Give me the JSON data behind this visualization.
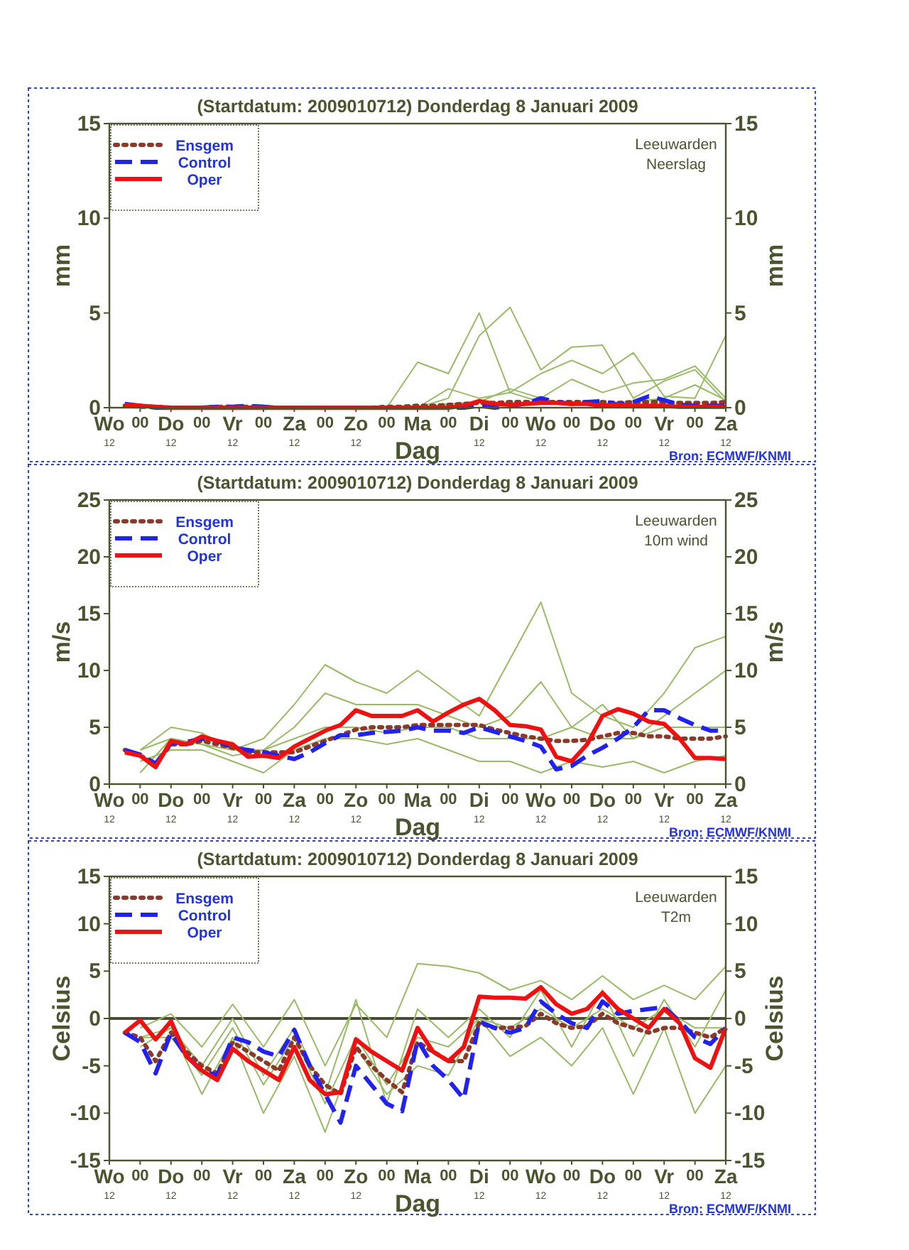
{
  "chart_data": [
    {
      "type": "line",
      "title": "(Startdatum: 2009010712)   Donderdag  8 Januari   2009",
      "xlabel": "Dag",
      "ylabel": "mm",
      "y2label": "mm",
      "annotations": [
        "Leeuwarden",
        "Neerslag",
        "Bron: ECMWF/KNMI"
      ],
      "xlim": [
        "2009-01-07T12:00",
        "2009-01-17T12:00"
      ],
      "xticks": [
        {
          "value": "2009-01-07T12:00",
          "label": "Wo$_{12}$"
        },
        {
          "value": "2009-01-08T00:00",
          "label": "00"
        },
        {
          "value": "2009-01-08T12:00",
          "label": "Do$_{12}$"
        },
        {
          "value": "2009-01-09T00:00",
          "label": "00"
        },
        {
          "value": "2009-01-09T12:00",
          "label": "Vr$_{12}$"
        },
        {
          "value": "2009-01-10T00:00",
          "label": "00"
        },
        {
          "value": "2009-01-10T12:00",
          "label": "Za$_{12}$"
        },
        {
          "value": "2009-01-11T00:00",
          "label": "00"
        },
        {
          "value": "2009-01-11T12:00",
          "label": "Zo$_{12}$"
        },
        {
          "value": "2009-01-12T00:00",
          "label": "00"
        },
        {
          "value": "2009-01-12T12:00",
          "label": "Ma"
        },
        {
          "value": "2009-01-13T00:00",
          "label": "00"
        },
        {
          "value": "2009-01-13T12:00",
          "label": "Di$_{12}$"
        },
        {
          "value": "2009-01-14T00:00",
          "label": "00"
        },
        {
          "value": "2009-01-14T12:00",
          "label": "Wo$_{12}$"
        },
        {
          "value": "2009-01-15T00:00",
          "label": "00"
        },
        {
          "value": "2009-01-15T12:00",
          "label": "Do$_{12}$"
        },
        {
          "value": "2009-01-16T00:00",
          "label": "00"
        },
        {
          "value": "2009-01-16T12:00",
          "label": "Vr$_{12}$"
        },
        {
          "value": "2009-01-17T00:00",
          "label": "00"
        },
        {
          "value": "2009-01-17T12:00",
          "label": "Za$_{12}$"
        }
      ],
      "ylim": [
        0,
        15
      ],
      "yticks": [
        0,
        5,
        10,
        15
      ],
      "y2lim": [
        0,
        15
      ],
      "y2ticks": [
        0,
        5,
        10,
        15
      ],
      "x": [
        "2009-01-07T18:00",
        "2009-01-08T00:00",
        "2009-01-08T06:00",
        "2009-01-08T12:00",
        "2009-01-08T18:00",
        "2009-01-09T00:00",
        "2009-01-09T06:00",
        "2009-01-09T12:00",
        "2009-01-09T18:00",
        "2009-01-10T00:00",
        "2009-01-10T06:00",
        "2009-01-10T12:00",
        "2009-01-10T18:00",
        "2009-01-11T00:00",
        "2009-01-11T06:00",
        "2009-01-11T12:00",
        "2009-01-11T18:00",
        "2009-01-12T00:00",
        "2009-01-12T06:00",
        "2009-01-12T12:00",
        "2009-01-12T18:00",
        "2009-01-13T00:00",
        "2009-01-13T06:00",
        "2009-01-13T12:00",
        "2009-01-13T18:00",
        "2009-01-14T00:00",
        "2009-01-14T06:00",
        "2009-01-14T12:00",
        "2009-01-14T18:00",
        "2009-01-15T00:00",
        "2009-01-15T06:00",
        "2009-01-15T12:00",
        "2009-01-15T18:00",
        "2009-01-16T00:00",
        "2009-01-16T06:00",
        "2009-01-16T12:00",
        "2009-01-16T18:00",
        "2009-01-17T00:00",
        "2009-01-17T06:00",
        "2009-01-17T12:00"
      ],
      "grid": false,
      "legend": "top left",
      "series": [
        {
          "color": "#99bb66",
          "line_style": "solid",
          "x": [
            "2009-01-08T00:00",
            "2009-01-08T12:00",
            "2009-01-09T00:00",
            "2009-01-09T12:00",
            "2009-01-10T00:00",
            "2009-01-10T12:00",
            "2009-01-11T00:00",
            "2009-01-11T12:00",
            "2009-01-12T00:00",
            "2009-01-12T12:00",
            "2009-01-13T00:00",
            "2009-01-13T12:00",
            "2009-01-14T00:00",
            "2009-01-14T12:00",
            "2009-01-15T00:00",
            "2009-01-15T12:00",
            "2009-01-16T00:00",
            "2009-01-16T12:00",
            "2009-01-17T00:00",
            "2009-01-17T12:00"
          ],
          "values": [
            0,
            0,
            0,
            0,
            0,
            0,
            0,
            0,
            0,
            2.4,
            1.8,
            5,
            0.8,
            0.3,
            0.2,
            0.2,
            0.3,
            0.5,
            1.2,
            0.4
          ]
        },
        {
          "color": "#99bb66",
          "line_style": "solid",
          "x": [
            "2009-01-08T00:00",
            "2009-01-08T12:00",
            "2009-01-09T00:00",
            "2009-01-09T12:00",
            "2009-01-10T00:00",
            "2009-01-10T12:00",
            "2009-01-11T00:00",
            "2009-01-11T12:00",
            "2009-01-12T00:00",
            "2009-01-12T12:00",
            "2009-01-13T00:00",
            "2009-01-13T12:00",
            "2009-01-14T00:00",
            "2009-01-14T12:00",
            "2009-01-15T00:00",
            "2009-01-15T12:00",
            "2009-01-16T00:00",
            "2009-01-16T12:00",
            "2009-01-17T00:00",
            "2009-01-17T12:00"
          ],
          "values": [
            0,
            0,
            0,
            0,
            0,
            0,
            0,
            0,
            0,
            0,
            0.5,
            3.8,
            5.3,
            2,
            3.2,
            3.3,
            0.5,
            1.4,
            2,
            0.3
          ]
        },
        {
          "color": "#99bb66",
          "line_style": "solid",
          "x": [
            "2009-01-08T00:00",
            "2009-01-08T12:00",
            "2009-01-09T00:00",
            "2009-01-09T12:00",
            "2009-01-10T00:00",
            "2009-01-10T12:00",
            "2009-01-11T00:00",
            "2009-01-11T12:00",
            "2009-01-12T00:00",
            "2009-01-12T12:00",
            "2009-01-13T00:00",
            "2009-01-13T12:00",
            "2009-01-14T00:00",
            "2009-01-14T12:00",
            "2009-01-15T00:00",
            "2009-01-15T12:00",
            "2009-01-16T00:00",
            "2009-01-16T12:00",
            "2009-01-17T00:00",
            "2009-01-17T12:00"
          ],
          "values": [
            0,
            0,
            0,
            0,
            0,
            0,
            0,
            0,
            0,
            0,
            1,
            0.5,
            0.8,
            1.8,
            2.5,
            1.8,
            2.9,
            0.6,
            0.5,
            3.8
          ]
        },
        {
          "color": "#99bb66",
          "line_style": "solid",
          "x": [
            "2009-01-08T00:00",
            "2009-01-08T12:00",
            "2009-01-09T00:00",
            "2009-01-09T12:00",
            "2009-01-10T00:00",
            "2009-01-10T12:00",
            "2009-01-11T00:00",
            "2009-01-11T12:00",
            "2009-01-12T00:00",
            "2009-01-12T12:00",
            "2009-01-13T00:00",
            "2009-01-13T12:00",
            "2009-01-14T00:00",
            "2009-01-14T12:00",
            "2009-01-15T00:00",
            "2009-01-15T12:00",
            "2009-01-16T00:00",
            "2009-01-16T12:00",
            "2009-01-17T00:00",
            "2009-01-17T12:00"
          ],
          "values": [
            0,
            0,
            0,
            0,
            0,
            0,
            0,
            0,
            0,
            0,
            0.2,
            0.3,
            1,
            0.5,
            1.5,
            0.8,
            1.3,
            1.5,
            2.2,
            0.5
          ]
        },
        {
          "name": "Ensgem",
          "color": "#8b3a2a",
          "line_style": "dotted",
          "values": [
            0.1,
            0.05,
            0.05,
            0,
            0,
            0,
            0.05,
            0.05,
            0.05,
            0.05,
            0,
            0,
            0,
            0,
            0,
            0,
            0,
            0.05,
            0.05,
            0.1,
            0.1,
            0.15,
            0.2,
            0.25,
            0.25,
            0.3,
            0.3,
            0.3,
            0.3,
            0.3,
            0.3,
            0.3,
            0.25,
            0.3,
            0.3,
            0.3,
            0.25,
            0.25,
            0.25,
            0.3
          ]
        },
        {
          "name": "Control",
          "color": "#2222ee",
          "line_style": "dashed",
          "values": [
            0.2,
            0.1,
            0,
            0,
            0,
            0,
            0.05,
            0.05,
            0.1,
            0.05,
            0,
            0,
            0,
            0,
            0,
            0,
            0,
            0,
            0,
            0,
            0,
            0,
            0,
            0.1,
            0,
            0.1,
            0.2,
            0.5,
            0.3,
            0.2,
            0.3,
            0.35,
            0.15,
            0.3,
            0.6,
            0.4,
            0.15,
            0.1,
            0.1,
            0.1
          ]
        },
        {
          "name": "Oper",
          "color": "#ee1111",
          "line_style": "solid",
          "values": [
            0.15,
            0.1,
            0.05,
            0,
            0,
            0,
            0,
            0,
            0,
            0,
            0,
            0,
            0,
            0,
            0,
            0,
            0,
            0,
            0,
            0,
            0,
            0,
            0.1,
            0.35,
            0.2,
            0.15,
            0.2,
            0.25,
            0.25,
            0.2,
            0.2,
            0.1,
            0.15,
            0.1,
            0.1,
            0.1,
            0.05,
            0.05,
            0.05,
            0.05
          ]
        }
      ]
    },
    {
      "type": "line",
      "title": "(Startdatum: 2009010712)   Donderdag  8 Januari   2009",
      "xlabel": "Dag",
      "ylabel": "m/s",
      "y2label": "m/s",
      "annotations": [
        "Leeuwarden",
        "10m wind",
        "Bron: ECMWF/KNMI"
      ],
      "xlim": [
        "2009-01-07T12:00",
        "2009-01-17T12:00"
      ],
      "xticks": [
        {
          "value": "2009-01-07T12:00",
          "label": "Wo$_{12}$"
        },
        {
          "value": "2009-01-08T00:00",
          "label": "00"
        },
        {
          "value": "2009-01-08T12:00",
          "label": "Do$_{12}$"
        },
        {
          "value": "2009-01-09T00:00",
          "label": "00"
        },
        {
          "value": "2009-01-09T12:00",
          "label": "Vr$_{12}$"
        },
        {
          "value": "2009-01-10T00:00",
          "label": "00"
        },
        {
          "value": "2009-01-10T12:00",
          "label": "Za$_{12}$"
        },
        {
          "value": "2009-01-11T00:00",
          "label": "00"
        },
        {
          "value": "2009-01-11T12:00",
          "label": "Zo$_{12}$"
        },
        {
          "value": "2009-01-12T00:00",
          "label": "00"
        },
        {
          "value": "2009-01-12T12:00",
          "label": "Ma"
        },
        {
          "value": "2009-01-13T00:00",
          "label": "00"
        },
        {
          "value": "2009-01-13T12:00",
          "label": "Di$_{12}$"
        },
        {
          "value": "2009-01-14T00:00",
          "label": "00"
        },
        {
          "value": "2009-01-14T12:00",
          "label": "Wo$_{12}$"
        },
        {
          "value": "2009-01-15T00:00",
          "label": "00"
        },
        {
          "value": "2009-01-15T12:00",
          "label": "Do$_{12}$"
        },
        {
          "value": "2009-01-16T00:00",
          "label": "00"
        },
        {
          "value": "2009-01-16T12:00",
          "label": "Vr$_{12}$"
        },
        {
          "value": "2009-01-17T00:00",
          "label": "00"
        },
        {
          "value": "2009-01-17T12:00",
          "label": "Za$_{12}$"
        }
      ],
      "ylim": [
        0,
        25
      ],
      "yticks": [
        0,
        5,
        10,
        15,
        20,
        25
      ],
      "y2lim": [
        0,
        25
      ],
      "y2ticks": [
        0,
        5,
        10,
        15,
        20,
        25
      ],
      "x": [
        "2009-01-07T18:00",
        "2009-01-08T00:00",
        "2009-01-08T06:00",
        "2009-01-08T12:00",
        "2009-01-08T18:00",
        "2009-01-09T00:00",
        "2009-01-09T06:00",
        "2009-01-09T12:00",
        "2009-01-09T18:00",
        "2009-01-10T00:00",
        "2009-01-10T06:00",
        "2009-01-10T12:00",
        "2009-01-10T18:00",
        "2009-01-11T00:00",
        "2009-01-11T06:00",
        "2009-01-11T12:00",
        "2009-01-11T18:00",
        "2009-01-12T00:00",
        "2009-01-12T06:00",
        "2009-01-12T12:00",
        "2009-01-12T18:00",
        "2009-01-13T00:00",
        "2009-01-13T06:00",
        "2009-01-13T12:00",
        "2009-01-13T18:00",
        "2009-01-14T00:00",
        "2009-01-14T06:00",
        "2009-01-14T12:00",
        "2009-01-14T18:00",
        "2009-01-15T00:00",
        "2009-01-15T06:00",
        "2009-01-15T12:00",
        "2009-01-15T18:00",
        "2009-01-16T00:00",
        "2009-01-16T06:00",
        "2009-01-16T12:00",
        "2009-01-16T18:00",
        "2009-01-17T00:00",
        "2009-01-17T06:00",
        "2009-01-17T12:00"
      ],
      "grid": false,
      "legend": "top left",
      "series": [
        {
          "color": "#99bb66",
          "line_style": "solid",
          "x": [
            "2009-01-08T00:00",
            "2009-01-08T12:00",
            "2009-01-09T00:00",
            "2009-01-09T12:00",
            "2009-01-10T00:00",
            "2009-01-10T12:00",
            "2009-01-11T00:00",
            "2009-01-11T12:00",
            "2009-01-12T00:00",
            "2009-01-12T12:00",
            "2009-01-13T00:00",
            "2009-01-13T12:00",
            "2009-01-14T00:00",
            "2009-01-14T12:00",
            "2009-01-15T00:00",
            "2009-01-15T12:00",
            "2009-01-16T00:00",
            "2009-01-16T12:00",
            "2009-01-17T00:00",
            "2009-01-17T12:00"
          ],
          "values": [
            3,
            4,
            3.5,
            3,
            4,
            7,
            10.5,
            9,
            8,
            10,
            8,
            6,
            11,
            16,
            8,
            6,
            5,
            8,
            12,
            13
          ]
        },
        {
          "color": "#99bb66",
          "line_style": "solid",
          "x": [
            "2009-01-08T00:00",
            "2009-01-08T12:00",
            "2009-01-09T00:00",
            "2009-01-09T12:00",
            "2009-01-10T00:00",
            "2009-01-10T12:00",
            "2009-01-11T00:00",
            "2009-01-11T12:00",
            "2009-01-12T00:00",
            "2009-01-12T12:00",
            "2009-01-13T00:00",
            "2009-01-13T12:00",
            "2009-01-14T00:00",
            "2009-01-14T12:00",
            "2009-01-15T00:00",
            "2009-01-15T12:00",
            "2009-01-16T00:00",
            "2009-01-16T12:00",
            "2009-01-17T00:00",
            "2009-01-17T12:00"
          ],
          "values": [
            2,
            3,
            3,
            2,
            1,
            3,
            4,
            4,
            3.5,
            4,
            3,
            2,
            2,
            1,
            2,
            1.5,
            2,
            1,
            2,
            2.5
          ]
        },
        {
          "color": "#99bb66",
          "line_style": "solid",
          "x": [
            "2009-01-08T00:00",
            "2009-01-08T12:00",
            "2009-01-09T00:00",
            "2009-01-09T12:00",
            "2009-01-10T00:00",
            "2009-01-10T12:00",
            "2009-01-11T00:00",
            "2009-01-11T12:00",
            "2009-01-12T00:00",
            "2009-01-12T12:00",
            "2009-01-13T00:00",
            "2009-01-13T12:00",
            "2009-01-14T00:00",
            "2009-01-14T12:00",
            "2009-01-15T00:00",
            "2009-01-15T12:00",
            "2009-01-16T00:00",
            "2009-01-16T12:00",
            "2009-01-17T00:00",
            "2009-01-17T12:00"
          ],
          "values": [
            3,
            5,
            4.5,
            3,
            3,
            5,
            8,
            7,
            7,
            7,
            6,
            5,
            6,
            9,
            5,
            7,
            4,
            6,
            8,
            10
          ]
        },
        {
          "color": "#99bb66",
          "line_style": "solid",
          "x": [
            "2009-01-08T00:00",
            "2009-01-08T12:00",
            "2009-01-09T00:00",
            "2009-01-09T12:00",
            "2009-01-10T00:00",
            "2009-01-10T12:00",
            "2009-01-11T00:00",
            "2009-01-11T12:00",
            "2009-01-12T00:00",
            "2009-01-12T12:00",
            "2009-01-13T00:00",
            "2009-01-13T12:00",
            "2009-01-14T00:00",
            "2009-01-14T12:00",
            "2009-01-15T00:00",
            "2009-01-15T12:00",
            "2009-01-16T00:00",
            "2009-01-16T12:00",
            "2009-01-17T00:00",
            "2009-01-17T12:00"
          ],
          "values": [
            1,
            4,
            3.5,
            2.5,
            3,
            4,
            5,
            5,
            4.5,
            5,
            5,
            4,
            4,
            4,
            5,
            4,
            4,
            5,
            5,
            5
          ]
        },
        {
          "name": "Ensgem",
          "color": "#8b3a2a",
          "line_style": "dotted",
          "values": [
            3,
            2.5,
            1.8,
            3.5,
            3.5,
            3.8,
            3.5,
            3.2,
            2.8,
            2.8,
            2.8,
            2.8,
            3.3,
            3.8,
            4.3,
            4.8,
            5,
            5,
            5,
            5.2,
            5.2,
            5.2,
            5.2,
            5.2,
            4.8,
            4.5,
            4.2,
            4,
            3.8,
            3.8,
            3.9,
            4.2,
            4.5,
            4.5,
            4.2,
            4.2,
            4,
            4,
            4,
            4.2
          ]
        },
        {
          "name": "Control",
          "color": "#2222ee",
          "line_style": "dashed",
          "values": [
            3,
            2.6,
            1.8,
            3.6,
            3.7,
            4,
            3.8,
            3.2,
            3,
            2.8,
            2.5,
            2.2,
            2.8,
            3.6,
            4.3,
            4.3,
            4.5,
            4.6,
            4.7,
            5,
            4.7,
            4.7,
            4.5,
            5,
            4.6,
            4.2,
            3.8,
            3.3,
            1.3,
            1.6,
            2.5,
            3.2,
            4,
            5,
            6.5,
            6.5,
            5.8,
            5.2,
            4.7,
            4.7
          ]
        },
        {
          "name": "Oper",
          "color": "#ee1111",
          "line_style": "solid",
          "values": [
            2.8,
            2.5,
            1.5,
            3.8,
            3.5,
            4.2,
            3.8,
            3.5,
            2.4,
            2.5,
            2.3,
            3.3,
            4,
            4.7,
            5.2,
            6.5,
            6,
            6,
            6,
            6.5,
            5.5,
            6.3,
            7,
            7.5,
            6.5,
            5.2,
            5.1,
            4.8,
            2.4,
            2,
            3.5,
            6,
            6.6,
            6.2,
            5.5,
            5.3,
            4,
            2.3,
            2.3,
            2.2
          ]
        }
      ]
    },
    {
      "type": "line",
      "title": "(Startdatum: 2009010712)   Donderdag  8 Januari   2009",
      "xlabel": "Dag",
      "ylabel": "Celsius",
      "y2label": "Celsius",
      "annotations": [
        "Leeuwarden",
        "T2m",
        "Bron: ECMWF/KNMI"
      ],
      "xlim": [
        "2009-01-07T12:00",
        "2009-01-17T12:00"
      ],
      "xticks": [
        {
          "value": "2009-01-07T12:00",
          "label": "Wo$_{12}$"
        },
        {
          "value": "2009-01-08T00:00",
          "label": "00"
        },
        {
          "value": "2009-01-08T12:00",
          "label": "Do$_{12}$"
        },
        {
          "value": "2009-01-09T00:00",
          "label": "00"
        },
        {
          "value": "2009-01-09T12:00",
          "label": "Vr$_{12}$"
        },
        {
          "value": "2009-01-10T00:00",
          "label": "00"
        },
        {
          "value": "2009-01-10T12:00",
          "label": "Za$_{12}$"
        },
        {
          "value": "2009-01-11T00:00",
          "label": "00"
        },
        {
          "value": "2009-01-11T12:00",
          "label": "Zo$_{12}$"
        },
        {
          "value": "2009-01-12T00:00",
          "label": "00"
        },
        {
          "value": "2009-01-12T12:00",
          "label": "Ma"
        },
        {
          "value": "2009-01-13T00:00",
          "label": "00"
        },
        {
          "value": "2009-01-13T12:00",
          "label": "Di$_{12}$"
        },
        {
          "value": "2009-01-14T00:00",
          "label": "00"
        },
        {
          "value": "2009-01-14T12:00",
          "label": "Wo$_{12}$"
        },
        {
          "value": "2009-01-15T00:00",
          "label": "00"
        },
        {
          "value": "2009-01-15T12:00",
          "label": "Do$_{12}$"
        },
        {
          "value": "2009-01-16T00:00",
          "label": "00"
        },
        {
          "value": "2009-01-16T12:00",
          "label": "Vr$_{12}$"
        },
        {
          "value": "2009-01-17T00:00",
          "label": "00"
        },
        {
          "value": "2009-01-17T12:00",
          "label": "Za$_{12}$"
        }
      ],
      "ylim": [
        -15,
        15
      ],
      "yticks": [
        -15,
        -10,
        -5,
        0,
        5,
        10,
        15
      ],
      "y2lim": [
        -15,
        15
      ],
      "y2ticks": [
        -15,
        -10,
        -5,
        0,
        5,
        10,
        15
      ],
      "x": [
        "2009-01-07T18:00",
        "2009-01-08T00:00",
        "2009-01-08T06:00",
        "2009-01-08T12:00",
        "2009-01-08T18:00",
        "2009-01-09T00:00",
        "2009-01-09T06:00",
        "2009-01-09T12:00",
        "2009-01-09T18:00",
        "2009-01-10T00:00",
        "2009-01-10T06:00",
        "2009-01-10T12:00",
        "2009-01-10T18:00",
        "2009-01-11T00:00",
        "2009-01-11T06:00",
        "2009-01-11T12:00",
        "2009-01-11T18:00",
        "2009-01-12T00:00",
        "2009-01-12T06:00",
        "2009-01-12T12:00",
        "2009-01-12T18:00",
        "2009-01-13T00:00",
        "2009-01-13T06:00",
        "2009-01-13T12:00",
        "2009-01-13T18:00",
        "2009-01-14T00:00",
        "2009-01-14T06:00",
        "2009-01-14T12:00",
        "2009-01-14T18:00",
        "2009-01-15T00:00",
        "2009-01-15T06:00",
        "2009-01-15T12:00",
        "2009-01-15T18:00",
        "2009-01-16T00:00",
        "2009-01-16T06:00",
        "2009-01-16T12:00",
        "2009-01-16T18:00",
        "2009-01-17T00:00",
        "2009-01-17T06:00",
        "2009-01-17T12:00"
      ],
      "grid": false,
      "legend": "top left",
      "ref_lines": [
        {
          "axis": "y",
          "value": 0,
          "color": "#4a4a3a"
        }
      ],
      "series": [
        {
          "color": "#99bb66",
          "line_style": "solid",
          "x": [
            "2009-01-08T00:00",
            "2009-01-08T12:00",
            "2009-01-09T00:00",
            "2009-01-09T12:00",
            "2009-01-10T00:00",
            "2009-01-10T12:00",
            "2009-01-11T00:00",
            "2009-01-11T12:00",
            "2009-01-12T00:00",
            "2009-01-12T12:00",
            "2009-01-13T00:00",
            "2009-01-13T12:00",
            "2009-01-14T00:00",
            "2009-01-14T12:00",
            "2009-01-15T00:00",
            "2009-01-15T12:00",
            "2009-01-16T00:00",
            "2009-01-16T12:00",
            "2009-01-17T00:00",
            "2009-01-17T12:00"
          ],
          "values": [
            -1,
            0.5,
            -3,
            1.5,
            -3,
            2,
            -5,
            1.5,
            -2,
            5.8,
            5.5,
            4.8,
            3,
            4,
            2,
            4.5,
            2,
            3.5,
            2,
            5.5
          ]
        },
        {
          "color": "#99bb66",
          "line_style": "solid",
          "x": [
            "2009-01-08T00:00",
            "2009-01-08T12:00",
            "2009-01-09T00:00",
            "2009-01-09T12:00",
            "2009-01-10T00:00",
            "2009-01-10T12:00",
            "2009-01-11T00:00",
            "2009-01-11T12:00",
            "2009-01-12T00:00",
            "2009-01-12T12:00",
            "2009-01-13T00:00",
            "2009-01-13T12:00",
            "2009-01-14T00:00",
            "2009-01-14T12:00",
            "2009-01-15T00:00",
            "2009-01-15T12:00",
            "2009-01-16T00:00",
            "2009-01-16T12:00",
            "2009-01-17T00:00",
            "2009-01-17T12:00"
          ],
          "values": [
            -3,
            -1,
            -8,
            -2,
            -10,
            -4,
            -12,
            -3,
            -8,
            -5,
            -6,
            0,
            -4,
            -2,
            -5,
            -1,
            -8,
            -1,
            -10,
            -5
          ]
        },
        {
          "color": "#99bb66",
          "line_style": "solid",
          "x": [
            "2009-01-08T00:00",
            "2009-01-08T12:00",
            "2009-01-09T00:00",
            "2009-01-09T12:00",
            "2009-01-10T00:00",
            "2009-01-10T12:00",
            "2009-01-11T00:00",
            "2009-01-11T12:00",
            "2009-01-12T00:00",
            "2009-01-12T12:00",
            "2009-01-13T00:00",
            "2009-01-13T12:00",
            "2009-01-14T00:00",
            "2009-01-14T12:00",
            "2009-01-15T00:00",
            "2009-01-15T12:00",
            "2009-01-16T00:00",
            "2009-01-16T12:00",
            "2009-01-17T00:00",
            "2009-01-17T12:00"
          ],
          "values": [
            -2,
            -1,
            -5,
            0,
            -6,
            -1,
            -8,
            2,
            -9,
            1,
            -2,
            1,
            -2,
            3,
            -3,
            3,
            -4,
            2,
            -3,
            3
          ]
        },
        {
          "color": "#99bb66",
          "line_style": "solid",
          "x": [
            "2009-01-08T00:00",
            "2009-01-08T12:00",
            "2009-01-09T00:00",
            "2009-01-09T12:00",
            "2009-01-10T00:00",
            "2009-01-10T12:00",
            "2009-01-11T00:00",
            "2009-01-11T12:00",
            "2009-01-12T00:00",
            "2009-01-12T12:00",
            "2009-01-13T00:00",
            "2009-01-13T12:00",
            "2009-01-14T00:00",
            "2009-01-14T12:00",
            "2009-01-15T00:00",
            "2009-01-15T12:00",
            "2009-01-16T00:00",
            "2009-01-16T12:00",
            "2009-01-17T00:00",
            "2009-01-17T12:00"
          ],
          "values": [
            -2,
            -2,
            -6,
            -1,
            -7,
            -2,
            -9,
            -2,
            -7,
            -2,
            -3,
            0,
            -1,
            1,
            -1,
            1,
            -1,
            1,
            -1,
            -1
          ]
        },
        {
          "name": "Ensgem",
          "color": "#8b3a2a",
          "line_style": "dotted",
          "values": [
            -1.5,
            -2,
            -4.5,
            -1.5,
            -3.5,
            -5,
            -5.8,
            -2.5,
            -3.5,
            -4.5,
            -5.5,
            -2,
            -5,
            -7,
            -8,
            -3,
            -5,
            -6.5,
            -7.8,
            -2.5,
            -3.5,
            -4.5,
            -4.5,
            -0.5,
            -1,
            -1,
            -0.8,
            0.5,
            -0.5,
            -1,
            -0.8,
            0.5,
            -0.5,
            -1,
            -1.5,
            -1,
            -1,
            -1.5,
            -2,
            -1
          ]
        },
        {
          "name": "Control",
          "color": "#2222ee",
          "line_style": "dashed",
          "values": [
            -1.5,
            -2.5,
            -5.8,
            -1.5,
            -4,
            -5.5,
            -6,
            -2,
            -2.5,
            -3.5,
            -4,
            -1.2,
            -5,
            -8,
            -11,
            -5,
            -7,
            -9,
            -9.8,
            -2.3,
            -5,
            -6.5,
            -8.5,
            -0.3,
            -1,
            -1.5,
            -1,
            1.8,
            0.5,
            -0.5,
            -1,
            1.8,
            0.5,
            0.8,
            1,
            1.2,
            -0.3,
            -2,
            -2.7,
            -1
          ]
        },
        {
          "name": "Oper",
          "color": "#ee1111",
          "line_style": "solid",
          "values": [
            -1.5,
            -0.2,
            -2.2,
            -0.3,
            -4,
            -5.5,
            -6.5,
            -3.2,
            -4.5,
            -5.5,
            -6.5,
            -3,
            -6.5,
            -8,
            -7.8,
            -2.2,
            -3.5,
            -4.5,
            -5.5,
            -1,
            -3.5,
            -4.5,
            -3,
            2.3,
            2.2,
            2.2,
            2.1,
            3.3,
            1.5,
            0.5,
            1,
            2.7,
            1,
            0,
            -1,
            1,
            -0.5,
            -4.2,
            -5.2,
            -1
          ]
        }
      ]
    }
  ]
}
